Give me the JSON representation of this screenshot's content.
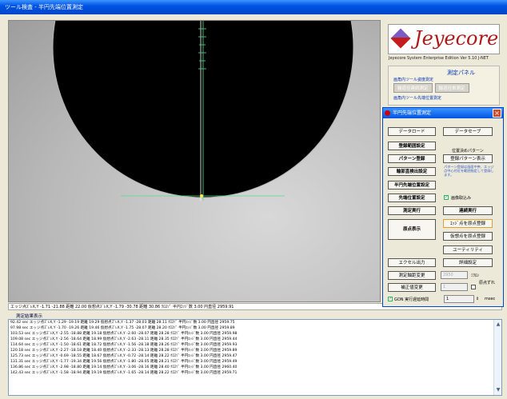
{
  "window": {
    "title": "ツール検査 - 半円先端位置測定"
  },
  "status_line": "エッジ点ｽﾞﾚX,Y -1.71 -21.88 距離 22.00 仮想点ｽﾞﾚX,Y -1.79 -30.78 距離 30.86 ｸﾛｽｿﾞ 半円ｴｯｼﾞ数 3.00 円直径 2959.91",
  "results_label": "測定結果表示",
  "results": [
    "92.42 sec エッジ点ｽﾞﾚX,Y -1.29 -19.19 距離 19.29 仮想点ｽﾞﾚX,Y -1.37 -28.03 距離 28.11 ｸﾛｽｿﾞ 半円ｴｯｼﾞ数 3.00 円直径 2959.75",
    "97.98 sec エッジ点ｽﾞﾚX,Y -1.70 -19.26 距離 19.46 仮想点ｽﾞﾚX,Y -1.75 -28.07 距離 28.20 ｸﾛｽｿﾞ 半円ｴｯｼﾞ数 3.00 円直径 2959.89",
    "103.53 sec エッジ点ｽﾞﾚX,Y -2.55 -18.88 距離 19.18 仮想点ｽﾞﾚX,Y -2.60 -28.07 距離 28.28 ｸﾛｽｿﾞ 半円ｴｯｼﾞ数 3.00 円直径 2959.98",
    "109.08 sec エッジ点ｽﾞﾚX,Y -2.56 -18.64 距離 18.99 仮想点ｽﾞﾚX,Y -2.63 -28.11 距離 28.35 ｸﾛｽｿﾞ 半円ｴｯｼﾞ数 3.00 円直径 2959.44",
    "114.64 sec エッジ点ｽﾞﾚX,Y -1.50 -18.61 距離 18.72 仮想点ｽﾞﾚX,Y -1.56 -28.18 距離 28.26 ｸﾛｽｿﾞ 半円ｴｯｼﾞ数 3.00 円直径 2959.93",
    "120.18 sec エッジ点ｽﾞﾚX,Y -2.27 -18.18 距離 18.40 仮想点ｽﾞﾚX,Y -2.33 -28.13 距離 28.28 ｸﾛｽｿﾞ 半円ｴｯｼﾞ数 3.00 円直径 2959.89",
    "125.73 sec エッジ点ｽﾞﾚX,Y -0.69 -18.55 距離 18.67 仮想点ｽﾞﾚX,Y -0.72 -28.14 距離 28.22 ｸﾛｽｿﾞ 半円ｴｯｼﾞ数 3.00 円直径 2959.47",
    "131.31 sec エッジ点ｽﾞﾚX,Y -1.77 -19.34 距離 19.56 仮想点ｽﾞﾚX,Y -1.80 -28.05 距離 28.21 ｸﾛｽｿﾞ 半円ｴｯｼﾞ数 3.00 円直径 2959.49",
    "136.86 sec エッジ点ｽﾞﾚX,Y -2.98 -18.80 距離 19.14 仮想点ｽﾞﾚX,Y -3.06 -28.16 距離 28.40 ｸﾛｽｿﾞ 半円ｴｯｼﾞ数 3.00 円直径 2960.40",
    "142.43 sec エッジ点ｽﾞﾚX,Y -1.58 -18.94 距離 19.19 仮想点ｽﾞﾚX,Y -1.65 -28.14 距離 28.22 ｸﾛｽｿﾞ 半円ｴｯｼﾞ数 3.00 円直径 2959.71"
  ],
  "logo": {
    "name": "Jeyecore",
    "edition": "Jeyecore System Enterprise Edition Ver 5.10 J-NET"
  },
  "measure_panel": {
    "title": "測定パネル",
    "sub1": "画角内ツール姿度測定",
    "btn_continuous": "輪道径連続測定",
    "btn_single": "輪道径単測定",
    "sub2": "画角内ツール先端位置測定"
  },
  "dialog": {
    "title": "半円先端位置測定",
    "data_load": "データロード",
    "data_save": "データセーブ",
    "register_range": "登録範囲設定",
    "pattern_label": "位置決めパターン",
    "pattern_register": "パターン登録",
    "register_pattern_show": "登録パターン表示",
    "note": "パターン登録は画面中央、エッジ点中心付近を範囲指定して登録します。",
    "contour_detect": "輪郭直検出設定",
    "semicircle_setting": "半円先端位置設定",
    "tip_setting": "先端位置設定",
    "image_capture": "画像取込み",
    "measure_run": "測定実行",
    "continuous_run": "連続実行",
    "origin_show": "原点表示",
    "edge_register": "ｴｯｼﾞ点を原点登録",
    "virtual_register": "仮想点を原点登録",
    "utility": "ユーティリティ",
    "excel_out": "エクセル出力",
    "detail_setting": "詳細設定",
    "measure_change": "測定軸距変更",
    "measure_value": "2950",
    "micron": "ﾐｸﾛﾝ",
    "correction_change": "補正値変更",
    "correction_value": "1",
    "origin_offset": "原点ずれ",
    "gon_label": "GON 実行遅延時間",
    "gon_value": "1",
    "msec": "msec"
  }
}
